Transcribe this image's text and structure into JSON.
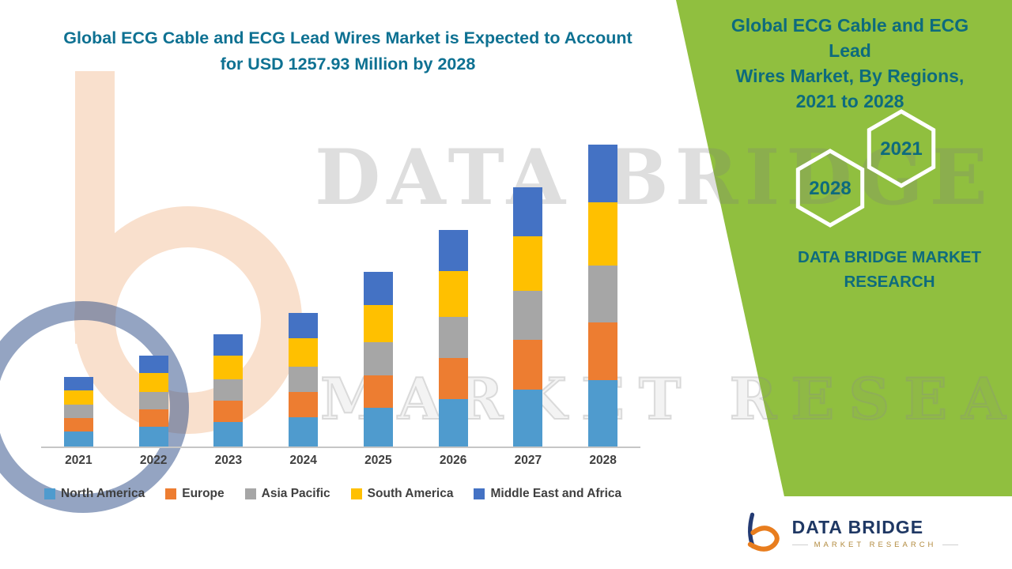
{
  "header": {
    "title_line1": "Global ECG Cable and ECG Lead Wires Market is Expected to Account",
    "title_line2": "for USD 1257.93 Million by 2028"
  },
  "side_panel": {
    "heading_lines": [
      "Global ECG Cable and ECG Lead",
      "Wires Market, By Regions,",
      "2021 to 2028"
    ],
    "hexagon_right": "2021",
    "hexagon_left": "2028",
    "brand_lines": [
      "DATA BRIDGE MARKET",
      "RESEARCH"
    ],
    "accent_green": "#90bf3f",
    "teal": "#0e6b7d"
  },
  "watermark": {
    "line1": "DATA BRIDGE",
    "line2": "MARKET RESEARCH"
  },
  "logo": {
    "name": "DATA BRIDGE",
    "subtitle": "MARKET RESEARCH",
    "navy": "#1f3864",
    "orange": "#e87d1e"
  },
  "chart_data": {
    "type": "bar",
    "stacked": true,
    "title": "Global ECG Cable and ECG Lead Wires Market is Expected to Account for USD 1257.93 Million by 2028",
    "unit": "USD Million",
    "categories": [
      "2021",
      "2022",
      "2023",
      "2024",
      "2025",
      "2026",
      "2027",
      "2028"
    ],
    "series": [
      {
        "name": "North America",
        "color": "#4F9BCE",
        "values": [
          64,
          84,
          103,
          122,
          160,
          198,
          238,
          277
        ]
      },
      {
        "name": "Europe",
        "color": "#ED7D31",
        "values": [
          55,
          72,
          89,
          106,
          138,
          171,
          205,
          239
        ]
      },
      {
        "name": "Asia Pacific",
        "color": "#A6A6A6",
        "values": [
          55,
          72,
          89,
          106,
          138,
          171,
          205,
          239
        ]
      },
      {
        "name": "South America",
        "color": "#FFC000",
        "values": [
          61,
          80,
          98,
          117,
          153,
          190,
          227,
          264
        ]
      },
      {
        "name": "Middle East and Africa",
        "color": "#4472C4",
        "values": [
          55,
          72,
          89,
          105,
          139,
          172,
          205,
          238.93
        ]
      }
    ],
    "totals_by_year": [
      290,
      380,
      468,
      556,
      728,
      902,
      1080,
      1257.93
    ],
    "highlight_total_2028": 1257.93,
    "ylim": [
      0,
      1300
    ],
    "gridlines": false,
    "legend_position": "bottom",
    "xlabel": "",
    "ylabel": ""
  }
}
